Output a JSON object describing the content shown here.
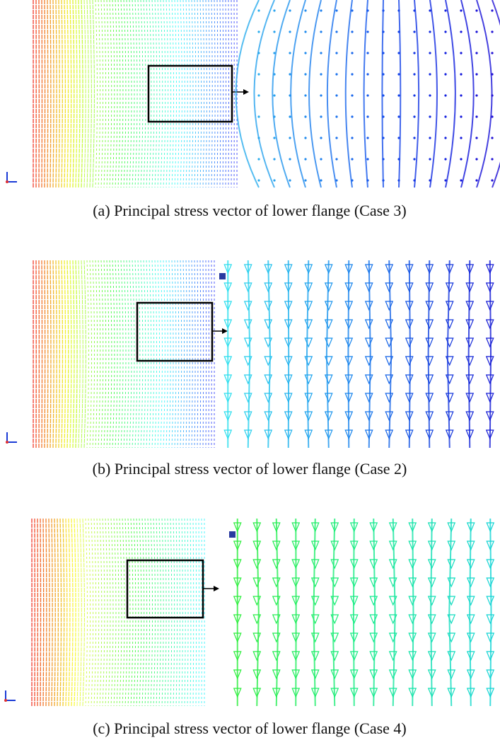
{
  "figure": {
    "panels": [
      {
        "caption": "(a) Principal stress vector of lower flange (Case 3)"
      },
      {
        "caption": "(b) Principal stress vector of lower flange (Case 2)"
      },
      {
        "caption": "(c) Principal stress vector of lower flange (Case 4)"
      }
    ]
  }
}
